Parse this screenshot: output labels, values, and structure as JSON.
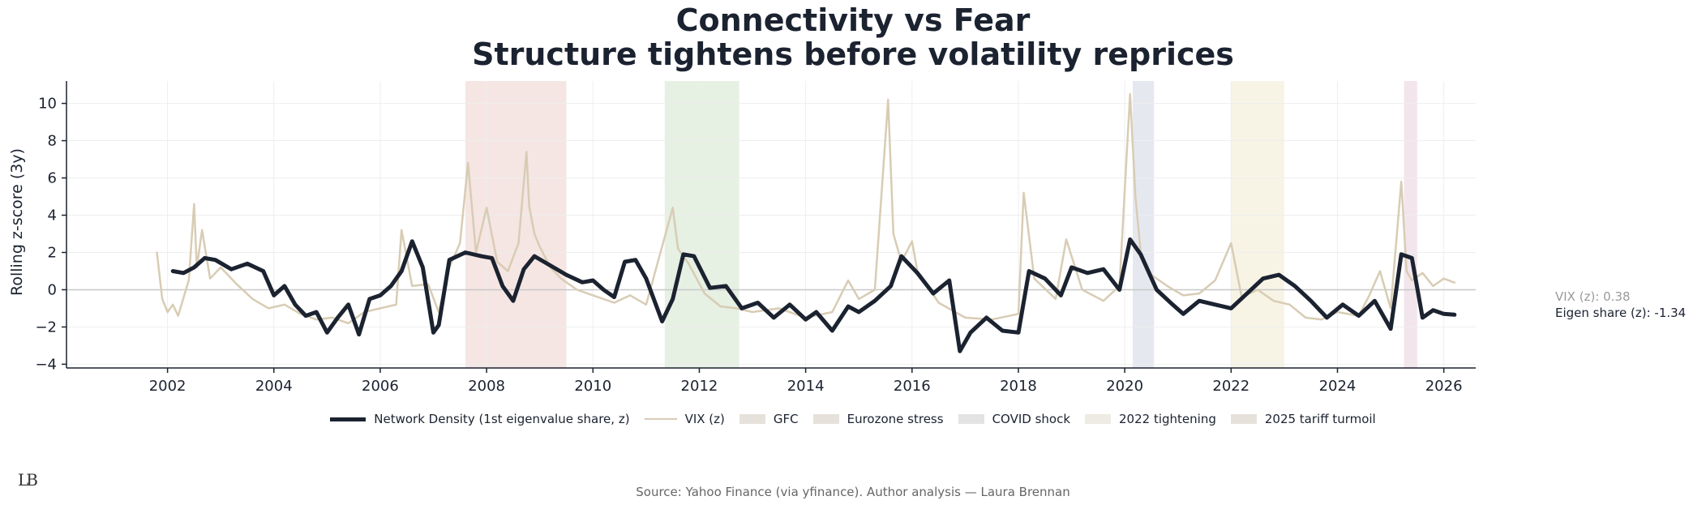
{
  "title_line1": "Connectivity vs Fear",
  "title_line2": "Structure tightens before volatility reprices",
  "readouts": {
    "vix": "VIX (z): 0.38",
    "eigen": "Eigen share (z): -1.34"
  },
  "legend": {
    "density": "Network Density (1st eigenvalue share, z)",
    "vix": "VIX (z)",
    "gfc": "GFC",
    "eurozone": "Eurozone stress",
    "covid": "COVID shock",
    "tightening": "2022 tightening",
    "tariff": "2025 tariff turmoil"
  },
  "source": "Source: Yahoo Finance (via yfinance). Author analysis — Laura Brennan",
  "logo": "LB",
  "colors": {
    "density": "#1b2230",
    "vix": "#d8ccb4",
    "gfc": "#f5e6e3",
    "eurozone": "#e6f0e3",
    "covid": "#e6e8f0",
    "tightening": "#f7f4e6",
    "tariff": "#f2e6ec",
    "axis": "#1b2230",
    "grid": "#eeeeee"
  },
  "chart_data": {
    "type": "line",
    "title": "Connectivity vs Fear — Structure tightens before volatility reprices",
    "xlabel": "",
    "ylabel": "Rolling z-score (3y)",
    "xlim": [
      2000.1,
      2026.6
    ],
    "ylim": [
      -4.2,
      11.2
    ],
    "xticks": [
      2002,
      2004,
      2006,
      2008,
      2010,
      2012,
      2014,
      2016,
      2018,
      2020,
      2022,
      2024,
      2026
    ],
    "yticks": [
      -4,
      -2,
      0,
      2,
      4,
      6,
      8,
      10
    ],
    "grid": true,
    "legend_position": "bottom-center",
    "shaded_periods": [
      {
        "name": "GFC",
        "start": 2007.6,
        "end": 2009.5
      },
      {
        "name": "Eurozone stress",
        "start": 2011.35,
        "end": 2012.75
      },
      {
        "name": "COVID shock",
        "start": 2020.15,
        "end": 2020.55
      },
      {
        "name": "2022 tightening",
        "start": 2022.0,
        "end": 2023.0
      },
      {
        "name": "2025 tariff turmoil",
        "start": 2025.25,
        "end": 2025.5
      }
    ],
    "series": [
      {
        "name": "Network Density (1st eigenvalue share, z)",
        "x": [
          2002.1,
          2002.3,
          2002.5,
          2002.7,
          2002.9,
          2003.2,
          2003.5,
          2003.8,
          2004.0,
          2004.2,
          2004.4,
          2004.6,
          2004.8,
          2005.0,
          2005.2,
          2005.4,
          2005.6,
          2005.8,
          2006.0,
          2006.2,
          2006.4,
          2006.6,
          2006.8,
          2007.0,
          2007.1,
          2007.3,
          2007.6,
          2007.9,
          2008.1,
          2008.3,
          2008.5,
          2008.7,
          2008.9,
          2009.2,
          2009.5,
          2009.8,
          2010.0,
          2010.2,
          2010.4,
          2010.6,
          2010.8,
          2011.0,
          2011.3,
          2011.5,
          2011.7,
          2011.9,
          2012.2,
          2012.5,
          2012.8,
          2013.1,
          2013.4,
          2013.7,
          2014.0,
          2014.2,
          2014.5,
          2014.8,
          2015.0,
          2015.3,
          2015.6,
          2015.8,
          2016.1,
          2016.4,
          2016.7,
          2016.9,
          2017.1,
          2017.4,
          2017.7,
          2018.0,
          2018.2,
          2018.5,
          2018.8,
          2019.0,
          2019.3,
          2019.6,
          2019.9,
          2020.1,
          2020.3,
          2020.6,
          2020.9,
          2021.1,
          2021.4,
          2021.7,
          2022.0,
          2022.3,
          2022.6,
          2022.9,
          2023.2,
          2023.5,
          2023.8,
          2024.1,
          2024.4,
          2024.7,
          2025.0,
          2025.2,
          2025.4,
          2025.6,
          2025.8,
          2026.0,
          2026.2
        ],
        "values": [
          1.0,
          0.9,
          1.2,
          1.7,
          1.6,
          1.1,
          1.4,
          1.0,
          -0.3,
          0.2,
          -0.8,
          -1.4,
          -1.2,
          -2.3,
          -1.5,
          -0.8,
          -2.4,
          -0.5,
          -0.3,
          0.2,
          1.0,
          2.6,
          1.2,
          -2.3,
          -1.9,
          1.6,
          2.0,
          1.8,
          1.7,
          0.2,
          -0.6,
          1.1,
          1.8,
          1.3,
          0.8,
          0.4,
          0.5,
          0.0,
          -0.4,
          1.5,
          1.6,
          0.6,
          -1.7,
          -0.5,
          1.9,
          1.8,
          0.1,
          0.2,
          -1.0,
          -0.7,
          -1.5,
          -0.8,
          -1.6,
          -1.2,
          -2.2,
          -0.9,
          -1.2,
          -0.6,
          0.2,
          1.8,
          0.9,
          -0.2,
          0.5,
          -3.3,
          -2.3,
          -1.5,
          -2.2,
          -2.3,
          1.0,
          0.6,
          -0.3,
          1.2,
          0.9,
          1.1,
          0.0,
          2.7,
          1.9,
          0.0,
          -0.8,
          -1.3,
          -0.6,
          -0.8,
          -1.0,
          -0.2,
          0.6,
          0.8,
          0.2,
          -0.6,
          -1.5,
          -0.8,
          -1.4,
          -0.6,
          -2.1,
          1.9,
          1.7,
          -1.5,
          -1.1,
          -1.3,
          -1.34
        ]
      },
      {
        "name": "VIX (z)",
        "x": [
          2001.8,
          2001.9,
          2002.0,
          2002.1,
          2002.2,
          2002.4,
          2002.5,
          2002.55,
          2002.65,
          2002.8,
          2003.0,
          2003.3,
          2003.6,
          2003.9,
          2004.2,
          2004.5,
          2004.8,
          2005.1,
          2005.4,
          2005.7,
          2006.0,
          2006.3,
          2006.4,
          2006.6,
          2006.9,
          2007.1,
          2007.3,
          2007.5,
          2007.65,
          2007.8,
          2008.0,
          2008.2,
          2008.4,
          2008.6,
          2008.75,
          2008.8,
          2008.9,
          2009.0,
          2009.2,
          2009.4,
          2009.7,
          2010.0,
          2010.4,
          2010.7,
          2011.0,
          2011.5,
          2011.6,
          2011.8,
          2012.1,
          2012.4,
          2012.7,
          2013.0,
          2013.5,
          2014.0,
          2014.5,
          2014.8,
          2015.0,
          2015.3,
          2015.55,
          2015.65,
          2015.8,
          2016.0,
          2016.1,
          2016.5,
          2017.0,
          2017.5,
          2018.0,
          2018.1,
          2018.3,
          2018.7,
          2018.9,
          2019.2,
          2019.6,
          2019.9,
          2020.1,
          2020.2,
          2020.3,
          2020.5,
          2020.8,
          2021.1,
          2021.4,
          2021.7,
          2022.0,
          2022.2,
          2022.5,
          2022.8,
          2023.1,
          2023.4,
          2023.7,
          2024.0,
          2024.4,
          2024.6,
          2024.8,
          2025.0,
          2025.2,
          2025.3,
          2025.4,
          2025.6,
          2025.8,
          2026.0,
          2026.2
        ],
        "values": [
          2.0,
          -0.5,
          -1.2,
          -0.8,
          -1.4,
          0.5,
          4.6,
          1.2,
          3.2,
          0.6,
          1.2,
          0.3,
          -0.5,
          -1.0,
          -0.8,
          -1.3,
          -1.6,
          -1.5,
          -1.8,
          -1.2,
          -1.0,
          -0.8,
          3.2,
          0.2,
          0.3,
          -1.2,
          1.2,
          2.5,
          6.8,
          2.0,
          4.4,
          1.5,
          1.0,
          2.5,
          7.4,
          4.5,
          3.0,
          2.3,
          1.2,
          0.6,
          0.0,
          -0.3,
          -0.7,
          -0.3,
          -0.8,
          4.4,
          2.2,
          1.4,
          -0.2,
          -0.9,
          -1.0,
          -1.2,
          -1.0,
          -1.5,
          -1.2,
          0.5,
          -0.5,
          0.0,
          10.2,
          3.0,
          1.5,
          2.6,
          1.0,
          -0.7,
          -1.5,
          -1.6,
          -1.3,
          5.2,
          0.6,
          -0.5,
          2.7,
          0.0,
          -0.6,
          0.2,
          10.5,
          5.0,
          2.0,
          0.8,
          0.2,
          -0.3,
          -0.2,
          0.5,
          2.5,
          -0.4,
          0.0,
          -0.6,
          -0.8,
          -1.5,
          -1.6,
          -1.2,
          -1.4,
          -0.3,
          1.0,
          -1.0,
          5.8,
          1.0,
          0.5,
          0.9,
          0.2,
          0.6,
          0.38
        ]
      }
    ]
  }
}
